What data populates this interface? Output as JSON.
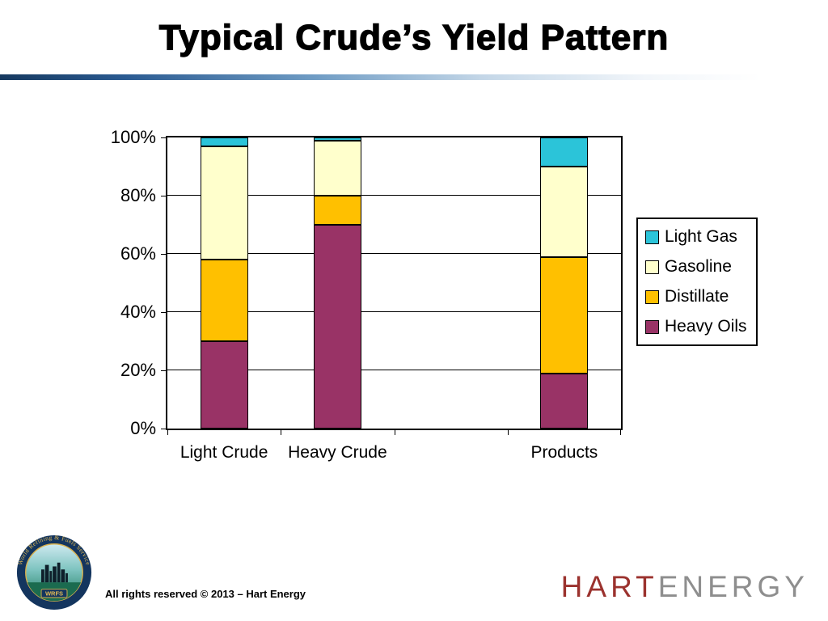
{
  "slide": {
    "title": "Typical Crude’s Yield Pattern",
    "footer": {
      "copyright": "All rights reserved © 2013 – Hart Energy"
    },
    "brand": {
      "part1": "HART",
      "part2": "ENERGY",
      "part1_color": "#9b322e",
      "part2_color": "#8e8e8e"
    },
    "logo": {
      "ring_text": "World Refining & Fuels Service",
      "banner": "WRFS"
    }
  },
  "chart_data": {
    "type": "bar",
    "stacked": true,
    "title": "",
    "xlabel": "",
    "ylabel": "",
    "categories": [
      "Light Crude",
      "Heavy Crude",
      "",
      "Products"
    ],
    "series": [
      {
        "name": "Heavy Oils",
        "color": "#993366",
        "values": [
          30,
          70,
          null,
          19
        ]
      },
      {
        "name": "Distillate",
        "color": "#FFC000",
        "values": [
          28,
          10,
          null,
          40
        ]
      },
      {
        "name": "Gasoline",
        "color": "#FFFFCC",
        "values": [
          39,
          19,
          null,
          31
        ]
      },
      {
        "name": "Light Gas",
        "color": "#2BC4D9",
        "values": [
          3,
          1,
          null,
          10
        ]
      }
    ],
    "legend": [
      "Light Gas",
      "Gasoline",
      "Distillate",
      "Heavy Oils"
    ],
    "legend_position": "right",
    "ylim": [
      0,
      100
    ],
    "yticks": [
      "0%",
      "20%",
      "40%",
      "60%",
      "80%",
      "100%"
    ],
    "grid": true
  }
}
